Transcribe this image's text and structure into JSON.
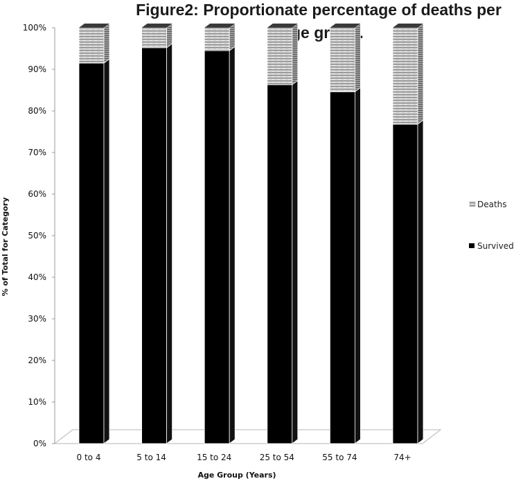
{
  "chart_data": {
    "type": "bar",
    "stacked": true,
    "three_d": true,
    "title": "Figure2: Proportionate percentage of deaths per age group.",
    "title_lines": [
      "Figure2: Proportionate percentage of deaths per",
      "age group."
    ],
    "xlabel": "Age Group  (Years)",
    "ylabel": "% of Total for Category",
    "ylim": [
      0,
      100
    ],
    "y_ticks": [
      "0%",
      "10%",
      "20%",
      "30%",
      "40%",
      "50%",
      "60%",
      "70%",
      "80%",
      "90%",
      "100%"
    ],
    "categories": [
      "0 to 4",
      "5 to 14",
      "15 to 24",
      "25 to 54",
      "55 to 74",
      "74+"
    ],
    "series": [
      {
        "name": "Survived",
        "values": [
          91.5,
          95.2,
          94.5,
          86.3,
          84.6,
          76.8
        ],
        "color": "#000000"
      },
      {
        "name": "Deaths",
        "values": [
          8.5,
          4.8,
          5.5,
          13.7,
          15.4,
          23.2
        ],
        "color": "#c8c8c8"
      }
    ],
    "legend": [
      "Deaths",
      "Survived"
    ],
    "legend_position": "right",
    "grid": false
  }
}
